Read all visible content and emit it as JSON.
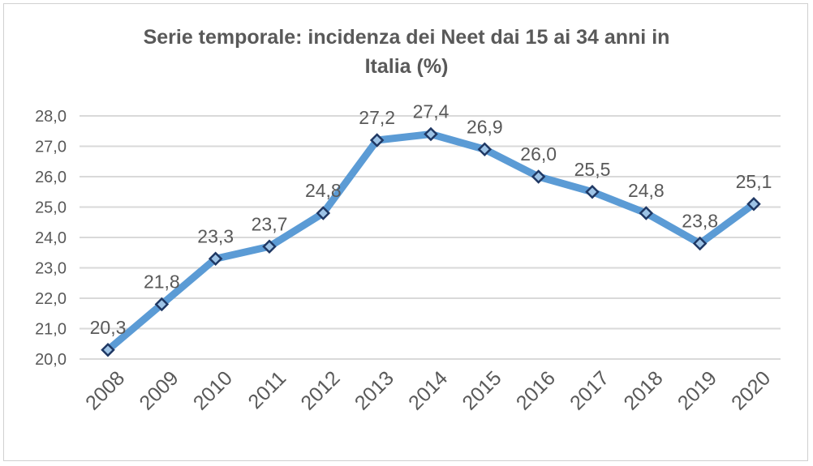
{
  "chart_data": {
    "type": "line",
    "title_line1": "Serie temporale: incidenza dei Neet dai 15 ai 34 anni in",
    "title_line2": "Italia (%)",
    "categories": [
      "2008",
      "2009",
      "2010",
      "2011",
      "2012",
      "2013",
      "2014",
      "2015",
      "2016",
      "2017",
      "2018",
      "2019",
      "2020"
    ],
    "values": [
      20.3,
      21.8,
      23.3,
      23.7,
      24.8,
      27.2,
      27.4,
      26.9,
      26.0,
      25.5,
      24.8,
      23.8,
      25.1
    ],
    "data_labels": [
      "20,3",
      "21,8",
      "23,3",
      "23,7",
      "24,8",
      "27,2",
      "27,4",
      "26,9",
      "26,0",
      "25,5",
      "24,8",
      "23,8",
      "25,1"
    ],
    "ylim": [
      20,
      28
    ],
    "yticks": [
      "20,0",
      "21,0",
      "22,0",
      "23,0",
      "24,0",
      "25,0",
      "26,0",
      "27,0",
      "28,0"
    ],
    "xlabel": "",
    "ylabel": "",
    "grid": true,
    "legend": "none",
    "colors": {
      "line": "#5b9bd5",
      "marker_edge": "#1f3864",
      "marker_fill": "#9dc3e6",
      "text": "#595959",
      "grid": "#d9d9d9"
    }
  }
}
